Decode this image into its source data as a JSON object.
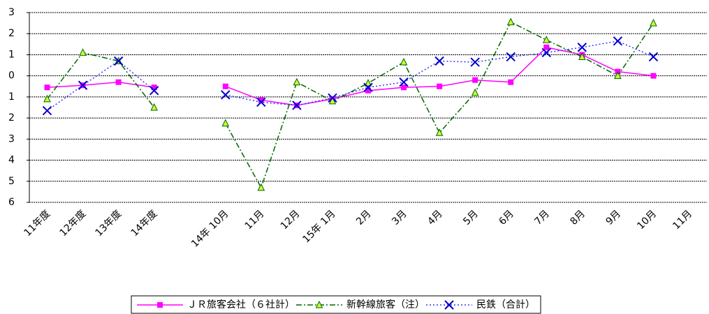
{
  "chart_data": {
    "type": "line",
    "categories": [
      "11年度",
      "12年度",
      "13年度",
      "14年度",
      null,
      "14年 10月",
      "11月",
      "12月",
      "15年 1月",
      "2月",
      "3月",
      "4月",
      "5月",
      "6月",
      "7月",
      "8月",
      "9月",
      "10月",
      "11月"
    ],
    "series": [
      {
        "name": "ＪＲ旅客会社（６社計）",
        "color": "#ff00ff",
        "values": [
          -0.55,
          -0.45,
          -0.3,
          -0.55,
          null,
          -0.5,
          -1.15,
          -1.4,
          -1.1,
          -0.7,
          -0.55,
          -0.5,
          -0.2,
          -0.3,
          1.35,
          1.0,
          0.2,
          0,
          null
        ]
      },
      {
        "name": "新幹線旅客（注）",
        "color": "#006600",
        "values": [
          -1.1,
          1.1,
          0.7,
          -1.5,
          null,
          -2.25,
          -5.3,
          -0.3,
          -1.2,
          -0.35,
          0.65,
          -2.7,
          -0.8,
          2.55,
          1.7,
          0.9,
          0,
          2.5,
          null
        ]
      },
      {
        "name": "民鉄（合計）",
        "color": "#0000cc",
        "values": [
          -1.65,
          -0.45,
          0.7,
          -0.7,
          null,
          -0.9,
          -1.25,
          -1.4,
          -1.05,
          -0.55,
          -0.3,
          0.7,
          0.65,
          0.9,
          1.1,
          1.35,
          1.65,
          0.9,
          null
        ]
      }
    ],
    "ylim": [
      -6,
      3
    ],
    "yticks": [
      3,
      2,
      1,
      0,
      {
        "value": -1,
        "label": "1"
      },
      {
        "value": -2,
        "label": "2"
      },
      {
        "value": -3,
        "label": "3"
      },
      {
        "value": -4,
        "label": "4"
      },
      {
        "value": -5,
        "label": "5"
      },
      {
        "value": -6,
        "label": "6"
      }
    ],
    "grid": true,
    "legend": "bottom"
  }
}
